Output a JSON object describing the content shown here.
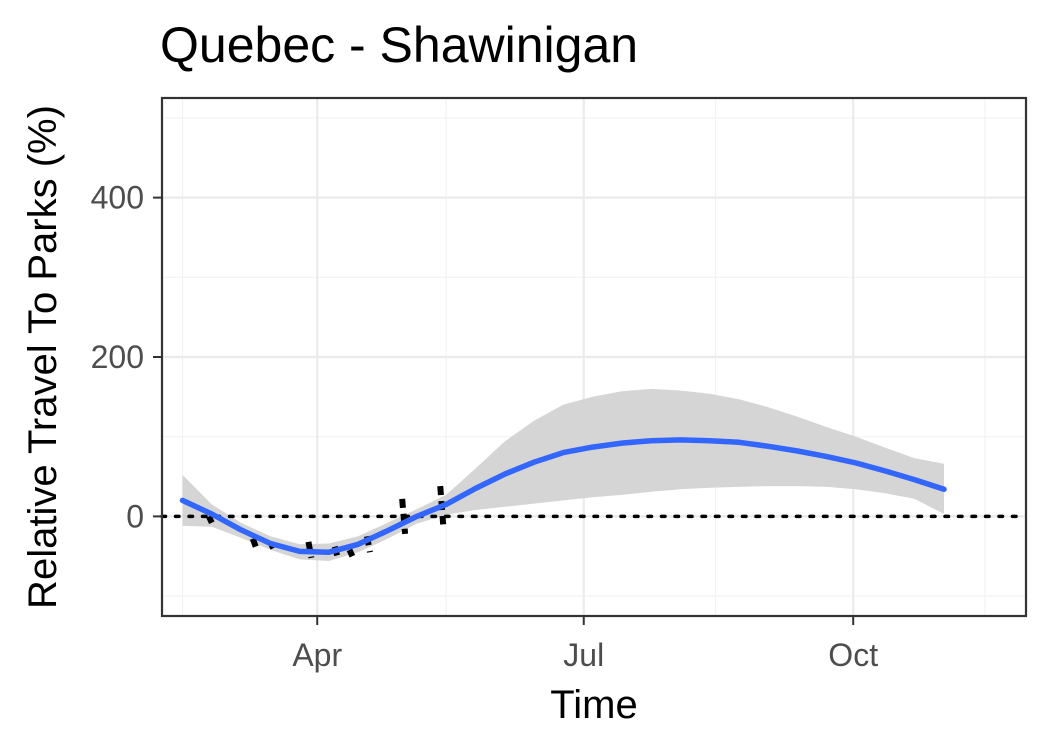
{
  "chart_data": {
    "type": "line",
    "title": "Quebec - Shawinigan",
    "xlabel": "Time",
    "ylabel": "Relative Travel To Parks (%)",
    "x_axis": {
      "type": "date",
      "range": [
        "2020-02-08",
        "2020-11-29"
      ],
      "major_ticks": [
        "2020-04-01",
        "2020-07-01",
        "2020-10-01"
      ],
      "tick_labels": [
        "Apr",
        "Jul",
        "Oct"
      ],
      "minor_ticks": [
        "2020-02-15",
        "2020-05-15",
        "2020-08-15",
        "2020-11-15"
      ]
    },
    "y_axis": {
      "range": [
        -125,
        525
      ],
      "major_ticks": [
        0,
        200,
        400
      ],
      "tick_labels": [
        "0",
        "200",
        "400"
      ],
      "minor_ticks": [
        -100,
        100,
        300,
        500
      ]
    },
    "grid": true,
    "reference_line": {
      "y": 0,
      "style": "dotted",
      "color": "#000000"
    },
    "smooth": {
      "color": "#3366ff",
      "ribbon_color": "#d3d3d3",
      "points": [
        {
          "x": "2020-02-15",
          "y": 20,
          "lo": -12,
          "hi": 52
        },
        {
          "x": "2020-02-25",
          "y": 3,
          "lo": -13,
          "hi": 15
        },
        {
          "x": "2020-03-06",
          "y": -17,
          "lo": -27,
          "hi": -8
        },
        {
          "x": "2020-03-16",
          "y": -34,
          "lo": -42,
          "hi": -25
        },
        {
          "x": "2020-03-26",
          "y": -44,
          "lo": -54,
          "hi": -35
        },
        {
          "x": "2020-04-05",
          "y": -45,
          "lo": -56,
          "hi": -34
        },
        {
          "x": "2020-04-15",
          "y": -35,
          "lo": -45,
          "hi": -25
        },
        {
          "x": "2020-04-25",
          "y": -18,
          "lo": -28,
          "hi": -8
        },
        {
          "x": "2020-05-05",
          "y": 0,
          "lo": -9,
          "hi": 9
        },
        {
          "x": "2020-05-15",
          "y": 15,
          "lo": 2,
          "hi": 27
        },
        {
          "x": "2020-05-25",
          "y": 35,
          "lo": 8,
          "hi": 60
        },
        {
          "x": "2020-06-04",
          "y": 53,
          "lo": 12,
          "hi": 94
        },
        {
          "x": "2020-06-14",
          "y": 68,
          "lo": 16,
          "hi": 120
        },
        {
          "x": "2020-06-24",
          "y": 80,
          "lo": 20,
          "hi": 140
        },
        {
          "x": "2020-07-04",
          "y": 87,
          "lo": 24,
          "hi": 150
        },
        {
          "x": "2020-07-14",
          "y": 92,
          "lo": 27,
          "hi": 157
        },
        {
          "x": "2020-07-24",
          "y": 95,
          "lo": 31,
          "hi": 160
        },
        {
          "x": "2020-08-03",
          "y": 96,
          "lo": 34,
          "hi": 158
        },
        {
          "x": "2020-08-13",
          "y": 95,
          "lo": 36,
          "hi": 154
        },
        {
          "x": "2020-08-23",
          "y": 93,
          "lo": 37,
          "hi": 147
        },
        {
          "x": "2020-09-02",
          "y": 88,
          "lo": 38,
          "hi": 137
        },
        {
          "x": "2020-09-12",
          "y": 82,
          "lo": 38,
          "hi": 125
        },
        {
          "x": "2020-09-22",
          "y": 75,
          "lo": 37,
          "hi": 112
        },
        {
          "x": "2020-10-02",
          "y": 67,
          "lo": 34,
          "hi": 100
        },
        {
          "x": "2020-10-12",
          "y": 57,
          "lo": 29,
          "hi": 86
        },
        {
          "x": "2020-10-22",
          "y": 46,
          "lo": 22,
          "hi": 73
        },
        {
          "x": "2020-11-01",
          "y": 34,
          "lo": 3,
          "hi": 66
        }
      ]
    },
    "observations": {
      "color": "#000000",
      "style": "dashed",
      "points": [
        {
          "x": "2020-02-24",
          "y": 0
        },
        {
          "x": "2020-02-25",
          "y": -8
        },
        {
          "x": "2020-03-10",
          "y": -28
        },
        {
          "x": "2020-03-11",
          "y": -38
        },
        {
          "x": "2020-03-16",
          "y": -33
        },
        {
          "x": "2020-03-17",
          "y": -40
        },
        {
          "x": "2020-03-29",
          "y": -32
        },
        {
          "x": "2020-03-30",
          "y": -52
        },
        {
          "x": "2020-04-07",
          "y": -38
        },
        {
          "x": "2020-04-08",
          "y": -52
        },
        {
          "x": "2020-04-12",
          "y": -42
        },
        {
          "x": "2020-04-13",
          "y": -50
        },
        {
          "x": "2020-04-18",
          "y": -25
        },
        {
          "x": "2020-04-19",
          "y": -45
        },
        {
          "x": "2020-04-30",
          "y": 22
        },
        {
          "x": "2020-05-01",
          "y": -22
        },
        {
          "x": "2020-05-13",
          "y": 38
        },
        {
          "x": "2020-05-14",
          "y": -10
        }
      ]
    }
  }
}
